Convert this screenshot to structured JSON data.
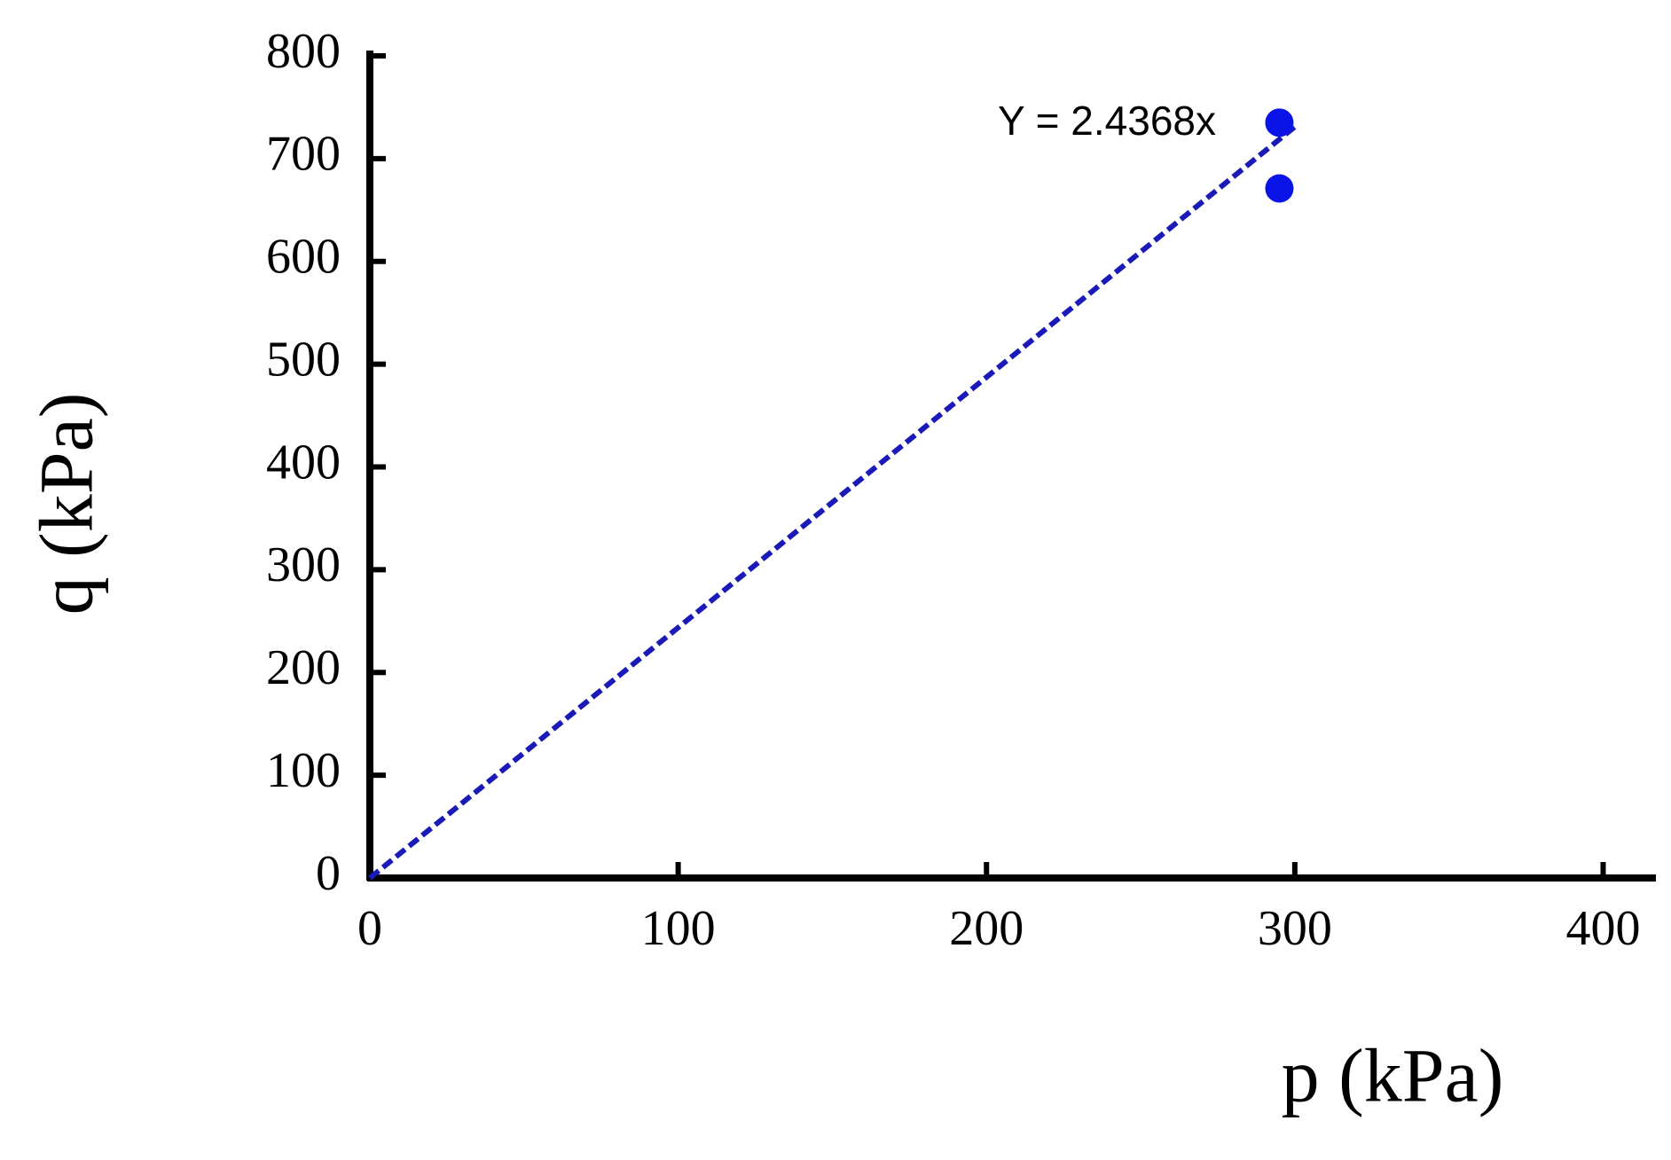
{
  "chart_data": {
    "type": "scatter",
    "x_label": "p (kPa)",
    "y_label": "q (kPa)",
    "annotation": "Y = 2.4368x",
    "series": [
      {
        "type": "scatter",
        "color": "#0a14e6",
        "x": [
          295,
          295
        ],
        "values": [
          735,
          671
        ]
      },
      {
        "type": "line",
        "color": "#1a1ab8",
        "dashed": true,
        "x": [
          0,
          300
        ],
        "values": [
          0,
          731
        ]
      }
    ],
    "xlim": [
      0,
      420
    ],
    "xticks": [
      0,
      100,
      200,
      300,
      400
    ],
    "ylim": [
      0,
      800
    ],
    "yticks": [
      0,
      100,
      200,
      300,
      400,
      500,
      600,
      700,
      800
    ],
    "grid": false
  }
}
